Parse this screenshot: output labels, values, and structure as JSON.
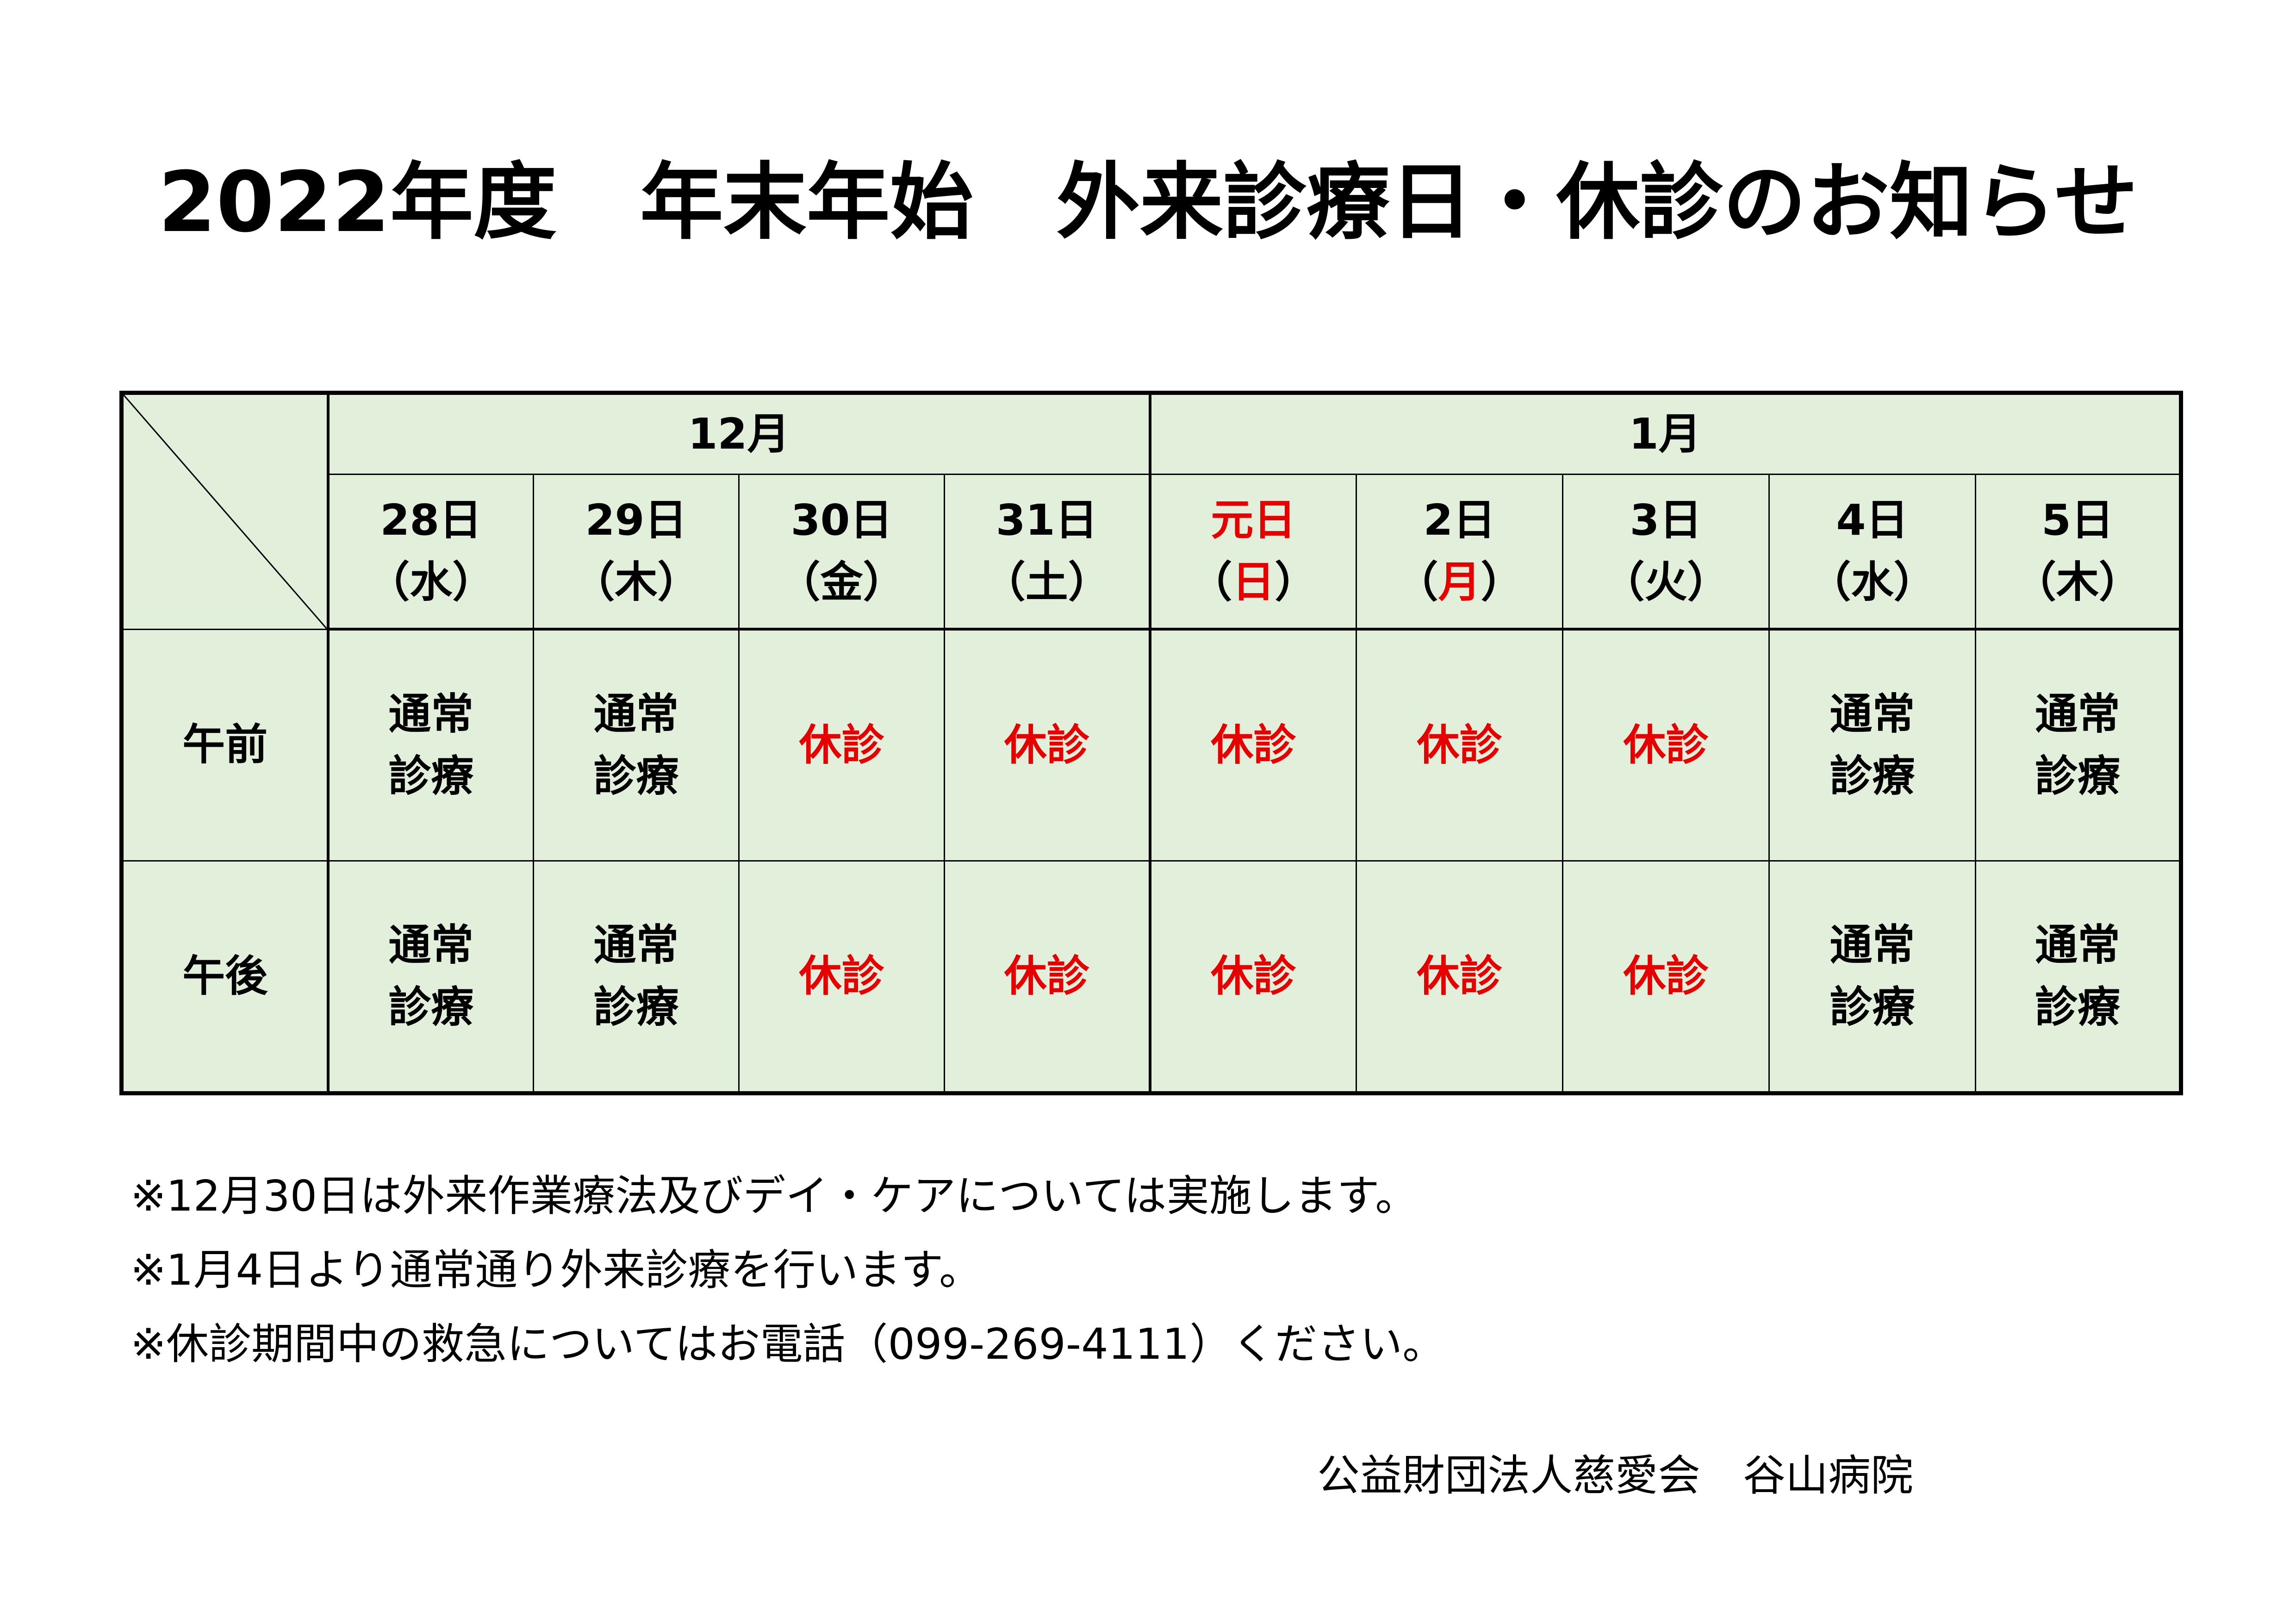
{
  "title": "2022年度　年末年始　外来診療日・休診のお知らせ",
  "months": [
    {
      "label": "12月",
      "span": 4
    },
    {
      "label": "1月",
      "span": 5
    }
  ],
  "days": [
    {
      "date": "28日",
      "weekday": "（水）",
      "red_date": false,
      "red_weekday": false
    },
    {
      "date": "29日",
      "weekday": "（木）",
      "red_date": false,
      "red_weekday": false
    },
    {
      "date": "30日",
      "weekday": "（金）",
      "red_date": false,
      "red_weekday": false
    },
    {
      "date": "31日",
      "weekday": "（土）",
      "red_date": false,
      "red_weekday": false
    },
    {
      "date": "元日",
      "weekday": "（日）",
      "red_date": true,
      "red_weekday": true
    },
    {
      "date": "2日",
      "weekday": "（月）",
      "red_date": false,
      "red_weekday": true
    },
    {
      "date": "3日",
      "weekday": "（火）",
      "red_date": false,
      "red_weekday": false
    },
    {
      "date": "4日",
      "weekday": "（水）",
      "red_date": false,
      "red_weekday": false
    },
    {
      "date": "5日",
      "weekday": "（木）",
      "red_date": false,
      "red_weekday": false
    }
  ],
  "rows": [
    {
      "label": "午前",
      "cells": [
        "通常\n診療",
        "通常\n診療",
        "休診",
        "休診",
        "休診",
        "休診",
        "休診",
        "通常\n診療",
        "通常\n診療"
      ]
    },
    {
      "label": "午後",
      "cells": [
        "通常\n診療",
        "通常\n診療",
        "休診",
        "休診",
        "休診",
        "休診",
        "休診",
        "通常\n診療",
        "通常\n診療"
      ]
    }
  ],
  "closed_label": "休診",
  "notes": [
    "※12月30日は外来作業療法及びデイ・ケアについては実施します。",
    "※1月4日より通常通り外来診療を行います。",
    "※休診期間中の救急についてはお電話（099-269-4111）ください。"
  ],
  "footer": "公益財団法人慈愛会　谷山病院",
  "colors": {
    "table_bg": "#e2efda",
    "closed": "#e60000",
    "holiday": "#e60000"
  }
}
